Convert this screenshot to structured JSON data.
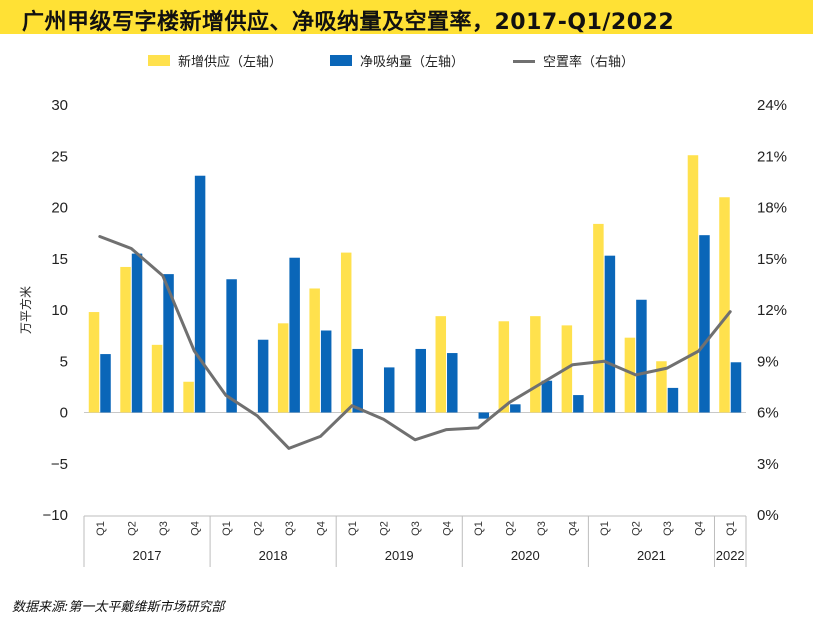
{
  "title": "广州甲级写字楼新增供应、净吸纳量及空置率，2017-Q1/2022",
  "legend": {
    "supply": "新增供应（左轴）",
    "absorption": "净吸纳量（左轴）",
    "vacancy": "空置率（右轴）"
  },
  "source": "数据来源:第一太平戴维斯市场研究部",
  "colors": {
    "supply": "#ffe14d",
    "absorption": "#0a66b8",
    "vacancy": "#707070",
    "title_bar": "#ffe135"
  },
  "chart_data": {
    "type": "bar",
    "title": "广州甲级写字楼新增供应、净吸纳量及空置率，2017-Q1/2022",
    "ylabel": "万平方米",
    "ylim": [
      -10,
      30
    ],
    "yticks": [
      30,
      25,
      20,
      15,
      10,
      5,
      0,
      -5,
      -10
    ],
    "ytick_labels": [
      "30",
      "25",
      "20",
      "15",
      "10",
      "5",
      "0",
      "−5",
      "−10"
    ],
    "y2lim": [
      0,
      24
    ],
    "y2ticks": [
      24,
      21,
      18,
      15,
      12,
      9,
      6,
      3,
      0
    ],
    "y2tick_labels": [
      "24%",
      "21%",
      "18%",
      "15%",
      "12%",
      "9%",
      "6%",
      "3%",
      "0%"
    ],
    "categories": [
      "Q1",
      "Q2",
      "Q3",
      "Q4",
      "Q1",
      "Q2",
      "Q3",
      "Q4",
      "Q1",
      "Q2",
      "Q3",
      "Q4",
      "Q1",
      "Q2",
      "Q3",
      "Q4",
      "Q1",
      "Q2",
      "Q3",
      "Q4",
      "Q1"
    ],
    "year_groups": [
      {
        "label": "2017",
        "count": 4
      },
      {
        "label": "2018",
        "count": 4
      },
      {
        "label": "2019",
        "count": 4
      },
      {
        "label": "2020",
        "count": 4
      },
      {
        "label": "2021",
        "count": 4
      },
      {
        "label": "2022",
        "count": 1
      }
    ],
    "series": [
      {
        "name": "新增供应（左轴）",
        "kind": "bar",
        "axis": "left",
        "values": [
          9.8,
          14.2,
          6.6,
          3.0,
          0,
          0,
          8.7,
          12.1,
          15.6,
          0,
          0,
          9.4,
          0,
          8.9,
          9.4,
          8.5,
          18.4,
          7.3,
          5.0,
          25.1,
          21.0
        ]
      },
      {
        "name": "净吸纳量（左轴）",
        "kind": "bar",
        "axis": "left",
        "values": [
          5.7,
          15.5,
          13.5,
          23.1,
          13.0,
          7.1,
          15.1,
          8.0,
          6.2,
          4.4,
          6.2,
          5.8,
          -0.6,
          0.8,
          3.1,
          1.7,
          15.3,
          11.0,
          2.4,
          17.3,
          4.9
        ]
      },
      {
        "name": "空置率（右轴）",
        "kind": "line",
        "axis": "right",
        "values": [
          16.3,
          15.6,
          14.0,
          9.6,
          7.0,
          5.8,
          3.9,
          4.6,
          6.4,
          5.6,
          4.4,
          5.0,
          5.1,
          6.6,
          7.7,
          8.8,
          9.0,
          8.2,
          8.6,
          9.6,
          11.9
        ]
      }
    ]
  }
}
